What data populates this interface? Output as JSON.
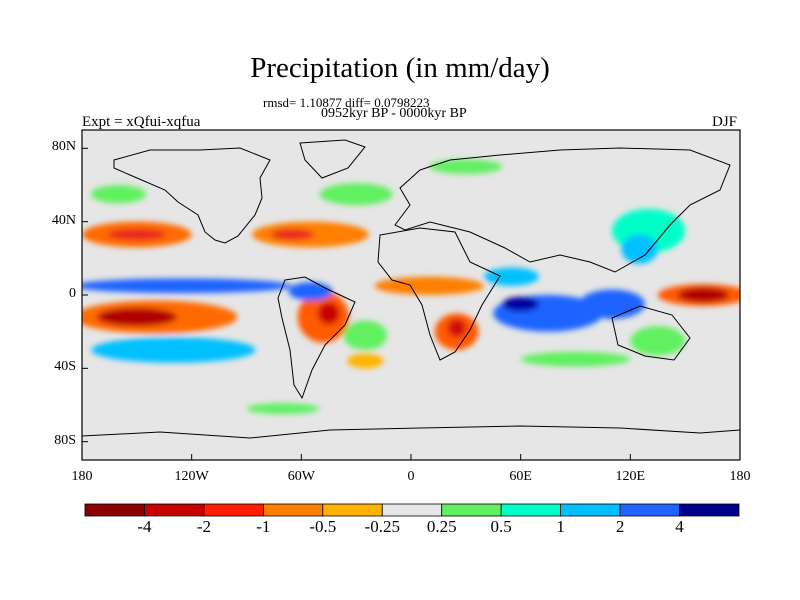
{
  "title": "Precipitation (in mm/day)",
  "stats_text": "rmsd= 1.10877 diff= 0.0798223",
  "period_text": "0952kyr BP - 0000kyr BP",
  "experiment_text": "Expt = xQfui-xqfua",
  "season": "DJF",
  "map": {
    "projection": "cylindrical equidistant",
    "lon_range": [
      -180,
      180
    ],
    "lat_range": [
      -90,
      90
    ],
    "ocean_land_background": "#e6e6e6",
    "lat_ticks": [
      {
        "lat": 80,
        "label": "80N"
      },
      {
        "lat": 40,
        "label": "40N"
      },
      {
        "lat": 0,
        "label": "0"
      },
      {
        "lat": -40,
        "label": "40S"
      },
      {
        "lat": -80,
        "label": "80S"
      }
    ],
    "lon_ticks": [
      {
        "lon": -180,
        "label": "180"
      },
      {
        "lon": -120,
        "label": "120W"
      },
      {
        "lon": -60,
        "label": "60W"
      },
      {
        "lon": 0,
        "label": "0"
      },
      {
        "lon": 60,
        "label": "60E"
      },
      {
        "lon": 120,
        "label": "120E"
      },
      {
        "lon": 180,
        "label": "180"
      }
    ],
    "anomaly_regions": [
      {
        "name": "n-pacific-storm-track-wet",
        "lon": -150,
        "lat": 33,
        "rx": 30,
        "ry": 7,
        "color": "#ff6a00"
      },
      {
        "name": "n-pacific-storm-track-core",
        "lon": -150,
        "lat": 33,
        "rx": 16,
        "ry": 3,
        "color": "#e8261a"
      },
      {
        "name": "n-atlantic-dry",
        "lon": -55,
        "lat": 33,
        "rx": 32,
        "ry": 7,
        "color": "#ff7f00"
      },
      {
        "name": "n-atlantic-core",
        "lon": -65,
        "lat": 33,
        "rx": 12,
        "ry": 3,
        "color": "#e8261a"
      },
      {
        "name": "e-pacific-dry-band",
        "lon": -140,
        "lat": -12,
        "rx": 45,
        "ry": 9,
        "color": "#ff6a00"
      },
      {
        "name": "e-pacific-dry-core",
        "lon": -150,
        "lat": -12,
        "rx": 22,
        "ry": 5,
        "color": "#b00000"
      },
      {
        "name": "e-pacific-itcz-wet",
        "lon": -125,
        "lat": 5,
        "rx": 60,
        "ry": 4,
        "color": "#1e64ff"
      },
      {
        "name": "s-pacific-wet",
        "lon": -130,
        "lat": -30,
        "rx": 45,
        "ry": 7,
        "color": "#00c0ff"
      },
      {
        "name": "s-america-dry",
        "lon": -48,
        "lat": -12,
        "rx": 14,
        "ry": 14,
        "color": "#ff5a00"
      },
      {
        "name": "s-america-dry-core",
        "lon": -45,
        "lat": -10,
        "rx": 6,
        "ry": 6,
        "color": "#c80000"
      },
      {
        "name": "n-brazil-wet",
        "lon": -55,
        "lat": 2,
        "rx": 12,
        "ry": 5,
        "color": "#1e64ff"
      },
      {
        "name": "s-atlantic-wet",
        "lon": -25,
        "lat": -22,
        "rx": 12,
        "ry": 8,
        "color": "#60f060"
      },
      {
        "name": "s-atlantic-dry",
        "lon": -25,
        "lat": -36,
        "rx": 10,
        "ry": 4,
        "color": "#ffb300"
      },
      {
        "name": "sahel-dry",
        "lon": 10,
        "lat": 5,
        "rx": 30,
        "ry": 5,
        "color": "#ff7f00"
      },
      {
        "name": "s-africa-dry",
        "lon": 25,
        "lat": -20,
        "rx": 12,
        "ry": 10,
        "color": "#ff5a00"
      },
      {
        "name": "s-africa-core",
        "lon": 25,
        "lat": -18,
        "rx": 5,
        "ry": 5,
        "color": "#d01010"
      },
      {
        "name": "indian-ocean-wet",
        "lon": 75,
        "lat": -10,
        "rx": 30,
        "ry": 10,
        "color": "#1e64ff"
      },
      {
        "name": "indian-ocean-core",
        "lon": 60,
        "lat": -5,
        "rx": 10,
        "ry": 4,
        "color": "#0000a0"
      },
      {
        "name": "arabian-wet",
        "lon": 55,
        "lat": 10,
        "rx": 15,
        "ry": 5,
        "color": "#00c0ff"
      },
      {
        "name": "asia-wet",
        "lon": 130,
        "lat": 35,
        "rx": 20,
        "ry": 12,
        "color": "#00ffc8"
      },
      {
        "name": "asia-wet-core",
        "lon": 125,
        "lat": 25,
        "rx": 10,
        "ry": 8,
        "color": "#00c0ff"
      },
      {
        "name": "w-pacific-dry",
        "lon": 160,
        "lat": 0,
        "rx": 25,
        "ry": 6,
        "color": "#ff5a00"
      },
      {
        "name": "w-pacific-dry-core",
        "lon": 160,
        "lat": 0,
        "rx": 14,
        "ry": 4,
        "color": "#b00000"
      },
      {
        "name": "maritime-continent-wet",
        "lon": 110,
        "lat": -5,
        "rx": 18,
        "ry": 8,
        "color": "#1e64ff"
      },
      {
        "name": "australia-wet",
        "lon": 135,
        "lat": -25,
        "rx": 15,
        "ry": 8,
        "color": "#60f060"
      },
      {
        "name": "s-indian-wet",
        "lon": 90,
        "lat": -35,
        "rx": 30,
        "ry": 4,
        "color": "#60f060"
      },
      {
        "name": "n-pacific-green",
        "lon": -160,
        "lat": 55,
        "rx": 15,
        "ry": 5,
        "color": "#60f060"
      },
      {
        "name": "n-atlantic-green",
        "lon": -30,
        "lat": 55,
        "rx": 20,
        "ry": 6,
        "color": "#60f060"
      },
      {
        "name": "siberia-green",
        "lon": 30,
        "lat": 70,
        "rx": 20,
        "ry": 4,
        "color": "#60f060"
      },
      {
        "name": "s-ocean-green",
        "lon": -70,
        "lat": -62,
        "rx": 20,
        "ry": 3,
        "color": "#60f060"
      }
    ]
  },
  "colorbar": {
    "colors": [
      "#8b0000",
      "#c80000",
      "#ff1e00",
      "#ff7f00",
      "#ffb300",
      "#e6e6e6",
      "#60f060",
      "#00ffc8",
      "#00c0ff",
      "#1e64ff",
      "#00008b"
    ],
    "labels": [
      "-4",
      "-2",
      "-1",
      "-0.5",
      "-0.25",
      "0.25",
      "0.5",
      "1",
      "2",
      "4"
    ]
  }
}
